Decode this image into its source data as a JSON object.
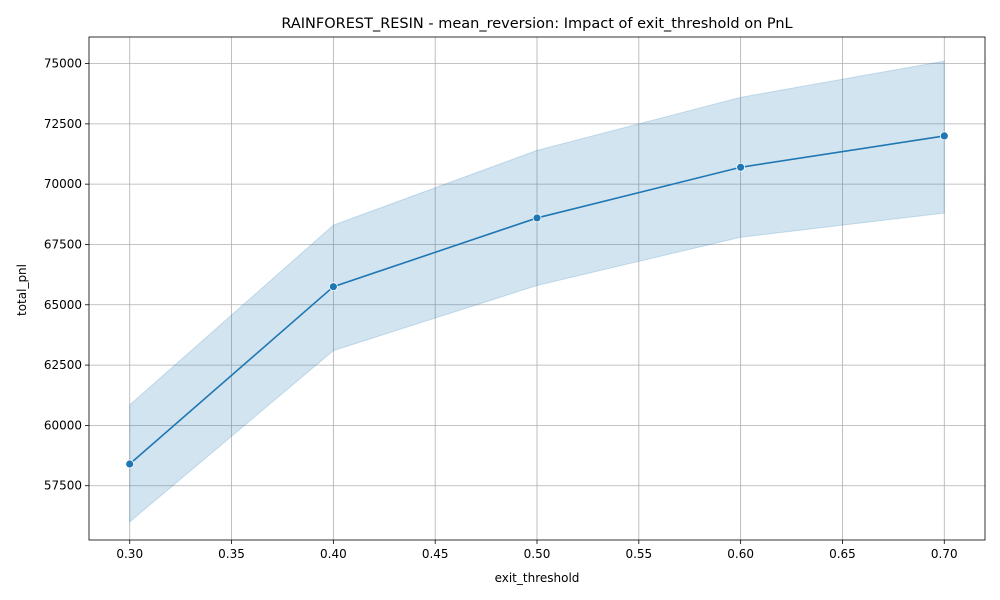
{
  "chart_data": {
    "type": "line",
    "title": "RAINFOREST_RESIN - mean_reversion: Impact of exit_threshold on PnL",
    "xlabel": "exit_threshold",
    "ylabel": "total_pnl",
    "x": [
      0.3,
      0.4,
      0.5,
      0.6,
      0.7
    ],
    "series": [
      {
        "values": [
          58400,
          65750,
          68600,
          70700,
          72000
        ],
        "ci_lower": [
          56000,
          63100,
          65800,
          67800,
          68800
        ],
        "ci_upper": [
          60850,
          68300,
          71400,
          73600,
          75100
        ],
        "color": "#1f77b4"
      }
    ],
    "xlim": [
      0.28,
      0.72
    ],
    "ylim": [
      55250,
      76100
    ],
    "xticks": [
      "0.30",
      "0.35",
      "0.40",
      "0.45",
      "0.50",
      "0.55",
      "0.60",
      "0.65",
      "0.70"
    ],
    "yticks": [
      "57500",
      "60000",
      "62500",
      "65000",
      "67500",
      "70000",
      "72500",
      "75000"
    ],
    "grid": true,
    "band_color": "#1f77b4"
  }
}
